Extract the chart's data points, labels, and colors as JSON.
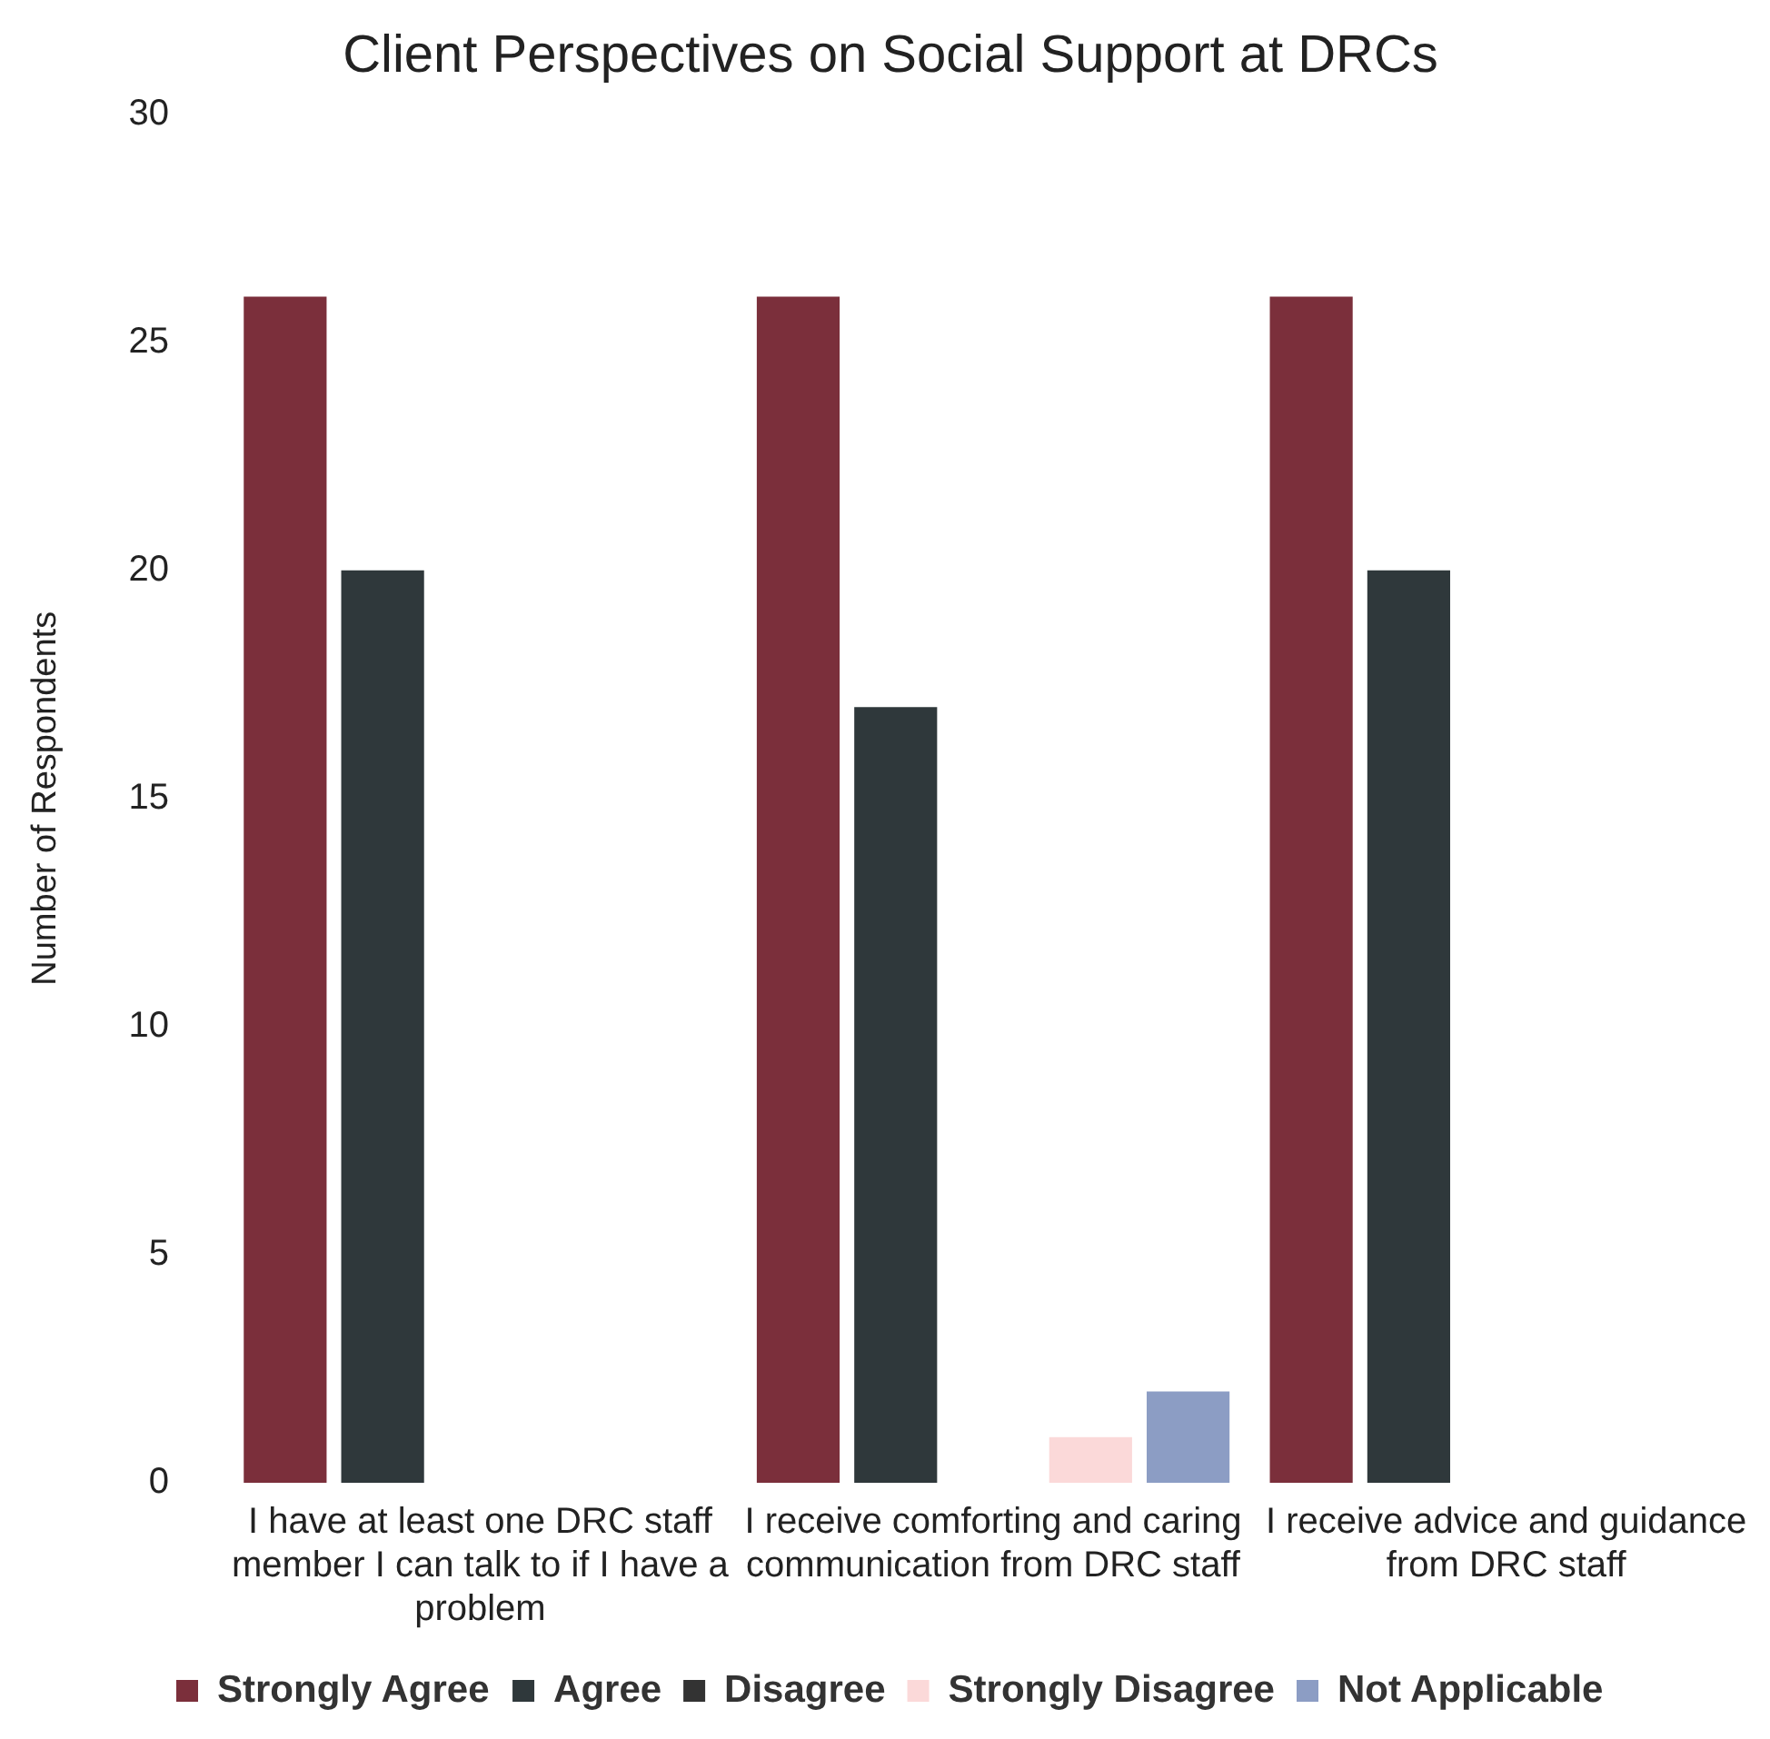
{
  "chart_data": {
    "type": "bar",
    "title": "Client Perspectives on Social Support at DRCs",
    "ylabel": "Number of Respondents",
    "categories": [
      "I have at least one DRC staff member I can talk to if I have a problem",
      "I receive comforting and caring communication from DRC staff",
      "I receive advice and guidance from DRC staff"
    ],
    "series": [
      {
        "name": "Strongly Agree",
        "color": "#7b2f3b",
        "values": [
          26,
          26,
          26
        ]
      },
      {
        "name": "Agree",
        "color": "#2f383b",
        "values": [
          20,
          17,
          20
        ]
      },
      {
        "name": "Disagree",
        "color": "#333333",
        "values": [
          0,
          0,
          0
        ]
      },
      {
        "name": "Strongly Disagree",
        "color": "#fbd9d9",
        "values": [
          0,
          1,
          0
        ]
      },
      {
        "name": "Not Applicable",
        "color": "#8c9dc4",
        "values": [
          0,
          2,
          0
        ]
      }
    ],
    "ylim": [
      0,
      30
    ],
    "yticks": [
      0,
      5,
      10,
      15,
      20,
      25,
      30
    ],
    "grid": false,
    "legend": "bottom"
  }
}
